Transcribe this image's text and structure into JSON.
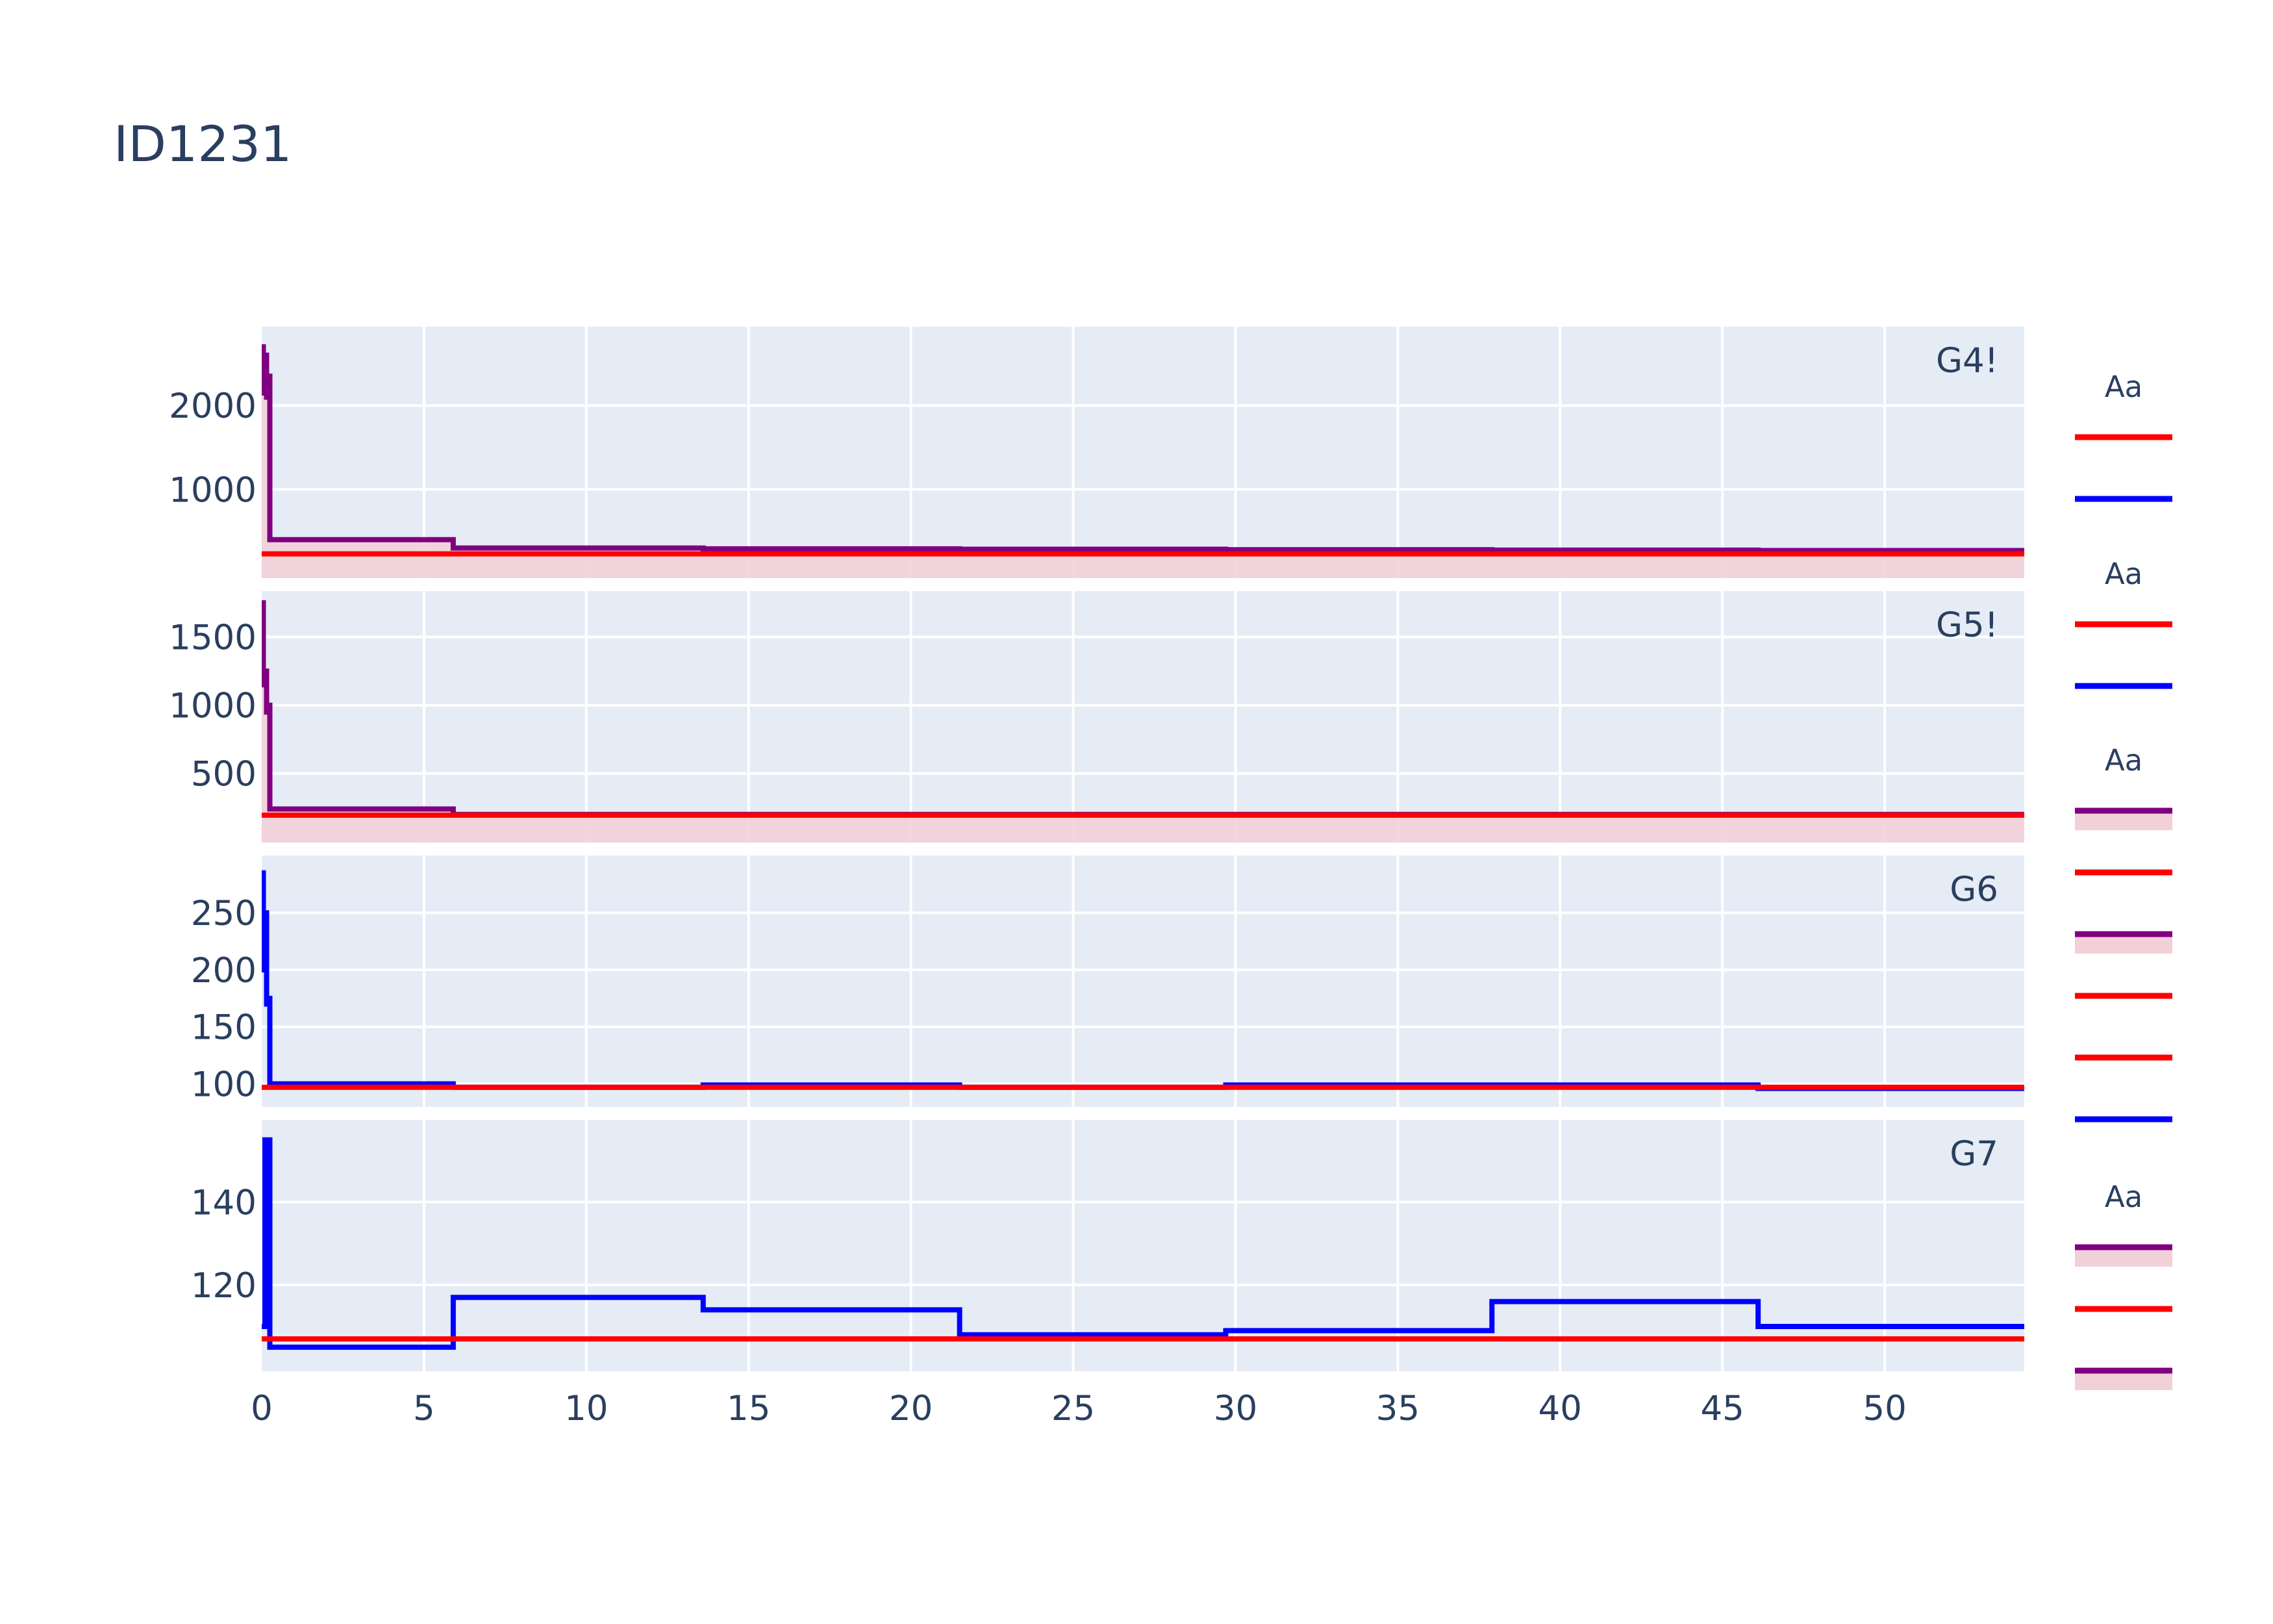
{
  "title": "ID1231",
  "colors": {
    "plot_bg": "#e5ecf6",
    "grid": "#ffffff",
    "text": "#2a3f5f",
    "red": "#ff0000",
    "blue": "#0000ff",
    "purple": "#800080",
    "band": "#f2d0d8"
  },
  "chart_data": {
    "type": "line",
    "line_shape": "step",
    "shared_x": true,
    "xlim": [
      0,
      54.3
    ],
    "x_ticks": [
      0,
      5,
      10,
      15,
      20,
      25,
      30,
      35,
      40,
      45,
      50
    ],
    "grid": true,
    "legend_position": "right",
    "panels": [
      {
        "label": "G4!",
        "ylim": [
          80,
          2800
        ],
        "y_ticks": [
          1000,
          2000
        ],
        "series": [
          {
            "color": "purple",
            "fill": "band",
            "x": [
              0,
              0.05,
              0.1,
              0.15,
              0.2,
              0.25,
              5.9,
              13.6,
              21.5,
              29.7,
              37.9,
              46.1,
              54.3
            ],
            "y": [
              2700,
              2150,
              2600,
              2100,
              2350,
              400,
              300,
              290,
              285,
              280,
              275,
              270,
              265
            ]
          },
          {
            "color": "red",
            "x": [
              0,
              54.3
            ],
            "y": [
              230,
              230
            ]
          }
        ]
      },
      {
        "label": "G5!",
        "ylim": [
          80,
          1750
        ],
        "y_ticks": [
          500,
          1000,
          1500
        ],
        "series": [
          {
            "color": "purple",
            "fill": "band",
            "x": [
              0,
              0.05,
              0.1,
              0.15,
              0.2,
              0.25,
              5.9,
              54.3
            ],
            "y": [
              1750,
              1150,
              1250,
              950,
              1000,
              240,
              200,
              200
            ]
          },
          {
            "color": "red",
            "x": [
              0,
              54.3
            ],
            "y": [
              195,
              195
            ]
          }
        ]
      },
      {
        "label": "G6",
        "ylim": [
          90,
          290
        ],
        "y_ticks": [
          100,
          150,
          200,
          250
        ],
        "series": [
          {
            "color": "blue",
            "x": [
              0,
              0.05,
              0.1,
              0.15,
              0.2,
              0.25,
              5.9,
              13.6,
              21.5,
              29.7,
              46.1,
              54.3
            ],
            "y": [
              285,
              200,
              250,
              170,
              175,
              100,
              97,
              99,
              97,
              99,
              96,
              96
            ]
          },
          {
            "color": "red",
            "x": [
              0,
              54.3
            ],
            "y": [
              97,
              97
            ]
          }
        ]
      },
      {
        "label": "G7",
        "ylim": [
          102,
          157
        ],
        "y_ticks": [
          120,
          140
        ],
        "series": [
          {
            "color": "blue",
            "x": [
              0,
              0.1,
              0.15,
              0.2,
              0.25,
              5.9,
              13.6,
              21.5,
              29.7,
              37.9,
              46.1,
              54.3
            ],
            "y": [
              110,
              155,
              125,
              155,
              105,
              117,
              114,
              108,
              109,
              116,
              110,
              110
            ]
          },
          {
            "color": "red",
            "x": [
              0,
              54.3
            ],
            "y": [
              107,
              107
            ]
          }
        ]
      }
    ],
    "legend": {
      "groups": [
        {
          "title": "Aa",
          "items": [
            {
              "color": "red"
            },
            {
              "color": "blue"
            }
          ]
        },
        {
          "title": "Aa",
          "items": [
            {
              "color": "red"
            },
            {
              "color": "blue"
            }
          ]
        },
        {
          "title": "Aa",
          "items": [
            {
              "color": "purple",
              "fill": "band"
            },
            {
              "color": "red"
            },
            {
              "color": "purple",
              "fill": "band"
            },
            {
              "color": "red"
            },
            {
              "color": "red"
            },
            {
              "color": "blue"
            }
          ]
        },
        {
          "title": "Aa",
          "items": [
            {
              "color": "purple",
              "fill": "band"
            },
            {
              "color": "red"
            },
            {
              "color": "purple",
              "fill": "band"
            }
          ]
        }
      ]
    }
  }
}
